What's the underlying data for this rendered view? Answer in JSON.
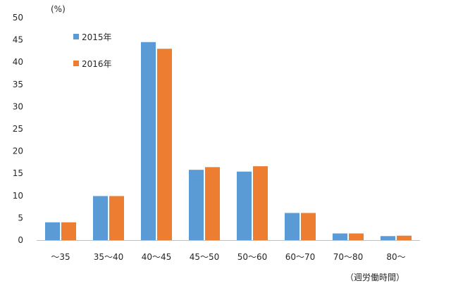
{
  "chart_data": {
    "type": "bar",
    "categories": [
      "～35",
      "35～40",
      "40～45",
      "45～50",
      "50～60",
      "60～70",
      "70～80",
      "80～"
    ],
    "series": [
      {
        "name": "2015年",
        "color": "#5B9BD5",
        "values": [
          4.0,
          9.9,
          44.5,
          15.8,
          15.4,
          6.1,
          1.5,
          0.9
        ]
      },
      {
        "name": "2016年",
        "color": "#ED7D31",
        "values": [
          4.0,
          9.9,
          43.0,
          16.4,
          16.6,
          6.1,
          1.5,
          1.0
        ]
      }
    ],
    "y_unit": "(%)",
    "x_unit": "（週労働時間）",
    "ylim": [
      0,
      50
    ],
    "yticks": [
      0,
      5,
      10,
      15,
      20,
      25,
      30,
      35,
      40,
      45,
      50
    ],
    "grid": false,
    "legend_position": "top-left"
  }
}
